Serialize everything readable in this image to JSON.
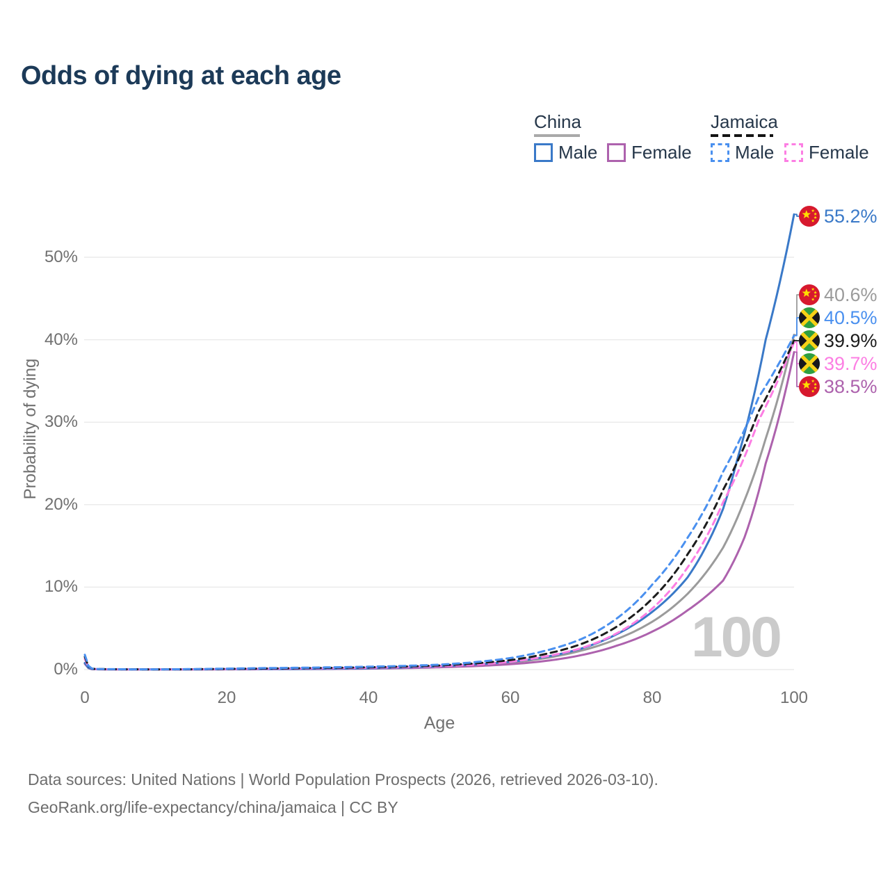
{
  "footer": {
    "line1": "Data sources: United Nations | World Population Prospects (2026, retrieved 2026-03-10).",
    "line2": "GeoRank.org/life-expectancy/china/jamaica | CC BY"
  },
  "chart_data": {
    "type": "line",
    "title": "Odds of dying at each age",
    "xlabel": "Age",
    "ylabel": "Probability of dying",
    "xlim": [
      0,
      100
    ],
    "ylim": [
      "0%",
      "57%"
    ],
    "x_ticks": [
      "0",
      "20",
      "40",
      "60",
      "80",
      "100"
    ],
    "y_ticks": [
      "0%",
      "10%",
      "20%",
      "30%",
      "40%",
      "50%"
    ],
    "grid": "horizontal gridlines every 10%",
    "annotation": "100",
    "legend_position": "top-right",
    "legend": {
      "groups": [
        {
          "label": "China",
          "dash": false,
          "underline_color": "#a9a9a9",
          "items": [
            {
              "label": "Male",
              "color": "#3a79c8"
            },
            {
              "label": "Female",
              "color": "#ad62ad"
            }
          ]
        },
        {
          "label": "Jamaica",
          "dash": true,
          "underline_color": "#1a1a1a",
          "items": [
            {
              "label": "Male",
              "color": "#4a90ef"
            },
            {
              "label": "Female",
              "color": "#fc7ee3"
            }
          ]
        }
      ]
    },
    "series": [
      {
        "name": "China average",
        "country": "China",
        "sex": "both",
        "color": "#9b9b9b",
        "dash": false,
        "end_value_pct": 40.6,
        "points": [
          [
            0,
            0.75
          ],
          [
            1,
            0.055
          ],
          [
            2,
            0.035
          ],
          [
            5,
            0.025
          ],
          [
            10,
            0.018
          ],
          [
            15,
            0.025
          ],
          [
            20,
            0.04
          ],
          [
            25,
            0.05
          ],
          [
            30,
            0.07
          ],
          [
            35,
            0.095
          ],
          [
            40,
            0.14
          ],
          [
            45,
            0.22
          ],
          [
            50,
            0.35
          ],
          [
            55,
            0.54
          ],
          [
            60,
            0.85
          ],
          [
            65,
            1.4
          ],
          [
            70,
            2.3
          ],
          [
            75,
            3.7
          ],
          [
            80,
            5.8
          ],
          [
            85,
            9.2
          ],
          [
            90,
            14.8
          ],
          [
            93,
            20.5
          ],
          [
            96,
            28
          ],
          [
            100,
            40.6
          ]
        ]
      },
      {
        "name": "China female",
        "country": "China",
        "sex": "female",
        "color": "#ad62ad",
        "dash": false,
        "end_value_pct": 38.5,
        "points": [
          [
            0,
            0.7
          ],
          [
            1,
            0.05
          ],
          [
            2,
            0.03
          ],
          [
            5,
            0.02
          ],
          [
            10,
            0.015
          ],
          [
            15,
            0.02
          ],
          [
            20,
            0.03
          ],
          [
            25,
            0.04
          ],
          [
            30,
            0.055
          ],
          [
            35,
            0.08
          ],
          [
            40,
            0.12
          ],
          [
            45,
            0.18
          ],
          [
            50,
            0.28
          ],
          [
            55,
            0.42
          ],
          [
            60,
            0.65
          ],
          [
            65,
            1.05
          ],
          [
            70,
            1.75
          ],
          [
            75,
            2.9
          ],
          [
            80,
            4.6
          ],
          [
            85,
            7.2
          ],
          [
            90,
            10.8
          ],
          [
            93,
            16
          ],
          [
            96,
            25
          ],
          [
            98,
            31
          ],
          [
            100,
            38.5
          ]
        ]
      },
      {
        "name": "China male",
        "country": "China",
        "sex": "male",
        "color": "#3a79c8",
        "dash": false,
        "end_value_pct": 55.2,
        "points": [
          [
            0,
            0.8
          ],
          [
            1,
            0.06
          ],
          [
            2,
            0.04
          ],
          [
            5,
            0.03
          ],
          [
            10,
            0.02
          ],
          [
            15,
            0.03
          ],
          [
            20,
            0.05
          ],
          [
            25,
            0.06
          ],
          [
            30,
            0.08
          ],
          [
            35,
            0.11
          ],
          [
            40,
            0.16
          ],
          [
            45,
            0.26
          ],
          [
            50,
            0.42
          ],
          [
            55,
            0.62
          ],
          [
            60,
            0.95
          ],
          [
            65,
            1.55
          ],
          [
            70,
            2.55
          ],
          [
            75,
            4.3
          ],
          [
            80,
            7.0
          ],
          [
            85,
            11.2
          ],
          [
            90,
            19.5
          ],
          [
            92,
            25.5
          ],
          [
            94,
            32
          ],
          [
            96,
            40
          ],
          [
            98,
            47
          ],
          [
            100,
            55.2
          ]
        ]
      },
      {
        "name": "Jamaica female",
        "country": "Jamaica",
        "sex": "female",
        "color": "#fc7ee3",
        "dash": true,
        "end_value_pct": 39.7,
        "points": [
          [
            0,
            1.3
          ],
          [
            1,
            0.09
          ],
          [
            2,
            0.05
          ],
          [
            5,
            0.03
          ],
          [
            10,
            0.02
          ],
          [
            15,
            0.035
          ],
          [
            20,
            0.07
          ],
          [
            25,
            0.1
          ],
          [
            30,
            0.13
          ],
          [
            35,
            0.17
          ],
          [
            40,
            0.22
          ],
          [
            45,
            0.3
          ],
          [
            50,
            0.42
          ],
          [
            55,
            0.6
          ],
          [
            60,
            0.95
          ],
          [
            65,
            1.6
          ],
          [
            70,
            2.6
          ],
          [
            75,
            4.4
          ],
          [
            80,
            7.4
          ],
          [
            85,
            12.4
          ],
          [
            90,
            20.3
          ],
          [
            95,
            30.2
          ],
          [
            100,
            39.7
          ]
        ]
      },
      {
        "name": "Jamaica average",
        "country": "Jamaica",
        "sex": "both",
        "color": "#1c1c1c",
        "dash": true,
        "end_value_pct": 39.9,
        "points": [
          [
            0,
            1.55
          ],
          [
            1,
            0.1
          ],
          [
            2,
            0.06
          ],
          [
            5,
            0.035
          ],
          [
            10,
            0.025
          ],
          [
            15,
            0.045
          ],
          [
            20,
            0.09
          ],
          [
            25,
            0.13
          ],
          [
            30,
            0.17
          ],
          [
            35,
            0.22
          ],
          [
            40,
            0.28
          ],
          [
            45,
            0.37
          ],
          [
            50,
            0.5
          ],
          [
            55,
            0.75
          ],
          [
            60,
            1.15
          ],
          [
            65,
            1.9
          ],
          [
            70,
            3.1
          ],
          [
            75,
            5.2
          ],
          [
            80,
            8.6
          ],
          [
            85,
            14
          ],
          [
            90,
            21.8
          ],
          [
            95,
            31.3
          ],
          [
            100,
            39.9
          ]
        ]
      },
      {
        "name": "Jamaica male",
        "country": "Jamaica",
        "sex": "male",
        "color": "#4a90ef",
        "dash": true,
        "end_value_pct": 40.5,
        "points": [
          [
            0,
            1.8
          ],
          [
            1,
            0.12
          ],
          [
            2,
            0.07
          ],
          [
            5,
            0.04
          ],
          [
            10,
            0.03
          ],
          [
            15,
            0.06
          ],
          [
            20,
            0.12
          ],
          [
            25,
            0.18
          ],
          [
            30,
            0.22
          ],
          [
            35,
            0.28
          ],
          [
            40,
            0.35
          ],
          [
            45,
            0.45
          ],
          [
            50,
            0.6
          ],
          [
            55,
            0.9
          ],
          [
            60,
            1.4
          ],
          [
            65,
            2.3
          ],
          [
            70,
            3.7
          ],
          [
            75,
            6.2
          ],
          [
            80,
            10.3
          ],
          [
            85,
            16
          ],
          [
            90,
            24
          ],
          [
            95,
            33
          ],
          [
            100,
            40.5
          ]
        ]
      }
    ],
    "end_labels": [
      {
        "flag": "china",
        "country": "China",
        "sex": "male",
        "text": "55.2%",
        "value": 55.2,
        "color": "#3a79c8"
      },
      {
        "flag": "china",
        "country": "China",
        "sex": "both",
        "text": "40.6%",
        "value": 40.6,
        "color": "#9b9b9b"
      },
      {
        "flag": "jamaica",
        "country": "Jamaica",
        "sex": "male",
        "text": "40.5%",
        "value": 40.5,
        "color": "#4a90ef"
      },
      {
        "flag": "jamaica",
        "country": "Jamaica",
        "sex": "both",
        "text": "39.9%",
        "value": 39.9,
        "color": "#1c1c1c"
      },
      {
        "flag": "jamaica",
        "country": "Jamaica",
        "sex": "female",
        "text": "39.7%",
        "value": 39.7,
        "color": "#fc7ee3"
      },
      {
        "flag": "china",
        "country": "China",
        "sex": "female",
        "text": "38.5%",
        "value": 38.5,
        "color": "#ad62ad"
      }
    ]
  }
}
